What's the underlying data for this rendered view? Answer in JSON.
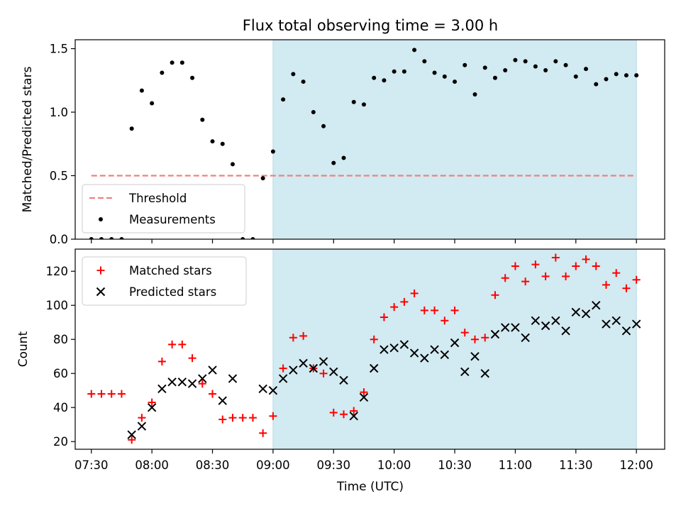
{
  "chart_data": [
    {
      "type": "scatter",
      "title": "Flux total observing time = 3.00 h",
      "ylabel": "Matched/Predicted stars",
      "xlabel": "",
      "ylim": [
        0,
        1.57
      ],
      "xlim": [
        "07:22",
        "12:14"
      ],
      "y_ticks": [
        "0.0",
        "0.5",
        "1.0",
        "1.5"
      ],
      "y_tick_values": [
        0,
        0.5,
        1.0,
        1.5
      ],
      "grid": false,
      "legend_position": "lower-left",
      "shaded_interval": {
        "start": "09:00",
        "end": "12:00",
        "color": "#add8e6"
      },
      "threshold": {
        "name": "Threshold",
        "value": 0.5,
        "from": "07:30",
        "to": "12:00",
        "color": "#f08080",
        "style": "dashed"
      },
      "series": [
        {
          "name": "Measurements",
          "marker": "dot",
          "color": "#000000",
          "points": [
            [
              "07:30",
              0.0
            ],
            [
              "07:35",
              0.0
            ],
            [
              "07:40",
              0.0
            ],
            [
              "07:45",
              0.0
            ],
            [
              "07:50",
              0.87
            ],
            [
              "07:55",
              1.17
            ],
            [
              "08:00",
              1.07
            ],
            [
              "08:05",
              1.31
            ],
            [
              "08:10",
              1.39
            ],
            [
              "08:15",
              1.39
            ],
            [
              "08:20",
              1.27
            ],
            [
              "08:25",
              0.94
            ],
            [
              "08:30",
              0.77
            ],
            [
              "08:35",
              0.75
            ],
            [
              "08:40",
              0.59
            ],
            [
              "08:45",
              0.0
            ],
            [
              "08:50",
              0.0
            ],
            [
              "08:55",
              0.48
            ],
            [
              "09:00",
              0.69
            ],
            [
              "09:05",
              1.1
            ],
            [
              "09:10",
              1.3
            ],
            [
              "09:15",
              1.24
            ],
            [
              "09:20",
              1.0
            ],
            [
              "09:25",
              0.89
            ],
            [
              "09:30",
              0.6
            ],
            [
              "09:35",
              0.64
            ],
            [
              "09:40",
              1.08
            ],
            [
              "09:45",
              1.06
            ],
            [
              "09:50",
              1.27
            ],
            [
              "09:55",
              1.25
            ],
            [
              "10:00",
              1.32
            ],
            [
              "10:05",
              1.32
            ],
            [
              "10:10",
              1.49
            ],
            [
              "10:15",
              1.4
            ],
            [
              "10:20",
              1.31
            ],
            [
              "10:25",
              1.28
            ],
            [
              "10:30",
              1.24
            ],
            [
              "10:35",
              1.37
            ],
            [
              "10:40",
              1.14
            ],
            [
              "10:45",
              1.35
            ],
            [
              "10:50",
              1.27
            ],
            [
              "10:55",
              1.33
            ],
            [
              "11:00",
              1.41
            ],
            [
              "11:05",
              1.4
            ],
            [
              "11:10",
              1.36
            ],
            [
              "11:15",
              1.33
            ],
            [
              "11:20",
              1.4
            ],
            [
              "11:25",
              1.37
            ],
            [
              "11:30",
              1.28
            ],
            [
              "11:35",
              1.34
            ],
            [
              "11:40",
              1.22
            ],
            [
              "11:45",
              1.26
            ],
            [
              "11:50",
              1.3
            ],
            [
              "11:55",
              1.29
            ],
            [
              "12:00",
              1.29
            ]
          ]
        }
      ]
    },
    {
      "type": "scatter",
      "title": "",
      "ylabel": "Count",
      "xlabel": "Time (UTC)",
      "ylim": [
        15.5,
        133
      ],
      "xlim": [
        "07:22",
        "12:14"
      ],
      "x_ticks": [
        "07:30",
        "08:00",
        "08:30",
        "09:00",
        "09:30",
        "10:00",
        "10:30",
        "11:00",
        "11:30",
        "12:00"
      ],
      "y_ticks": [
        "20",
        "40",
        "60",
        "80",
        "100",
        "120"
      ],
      "y_tick_values": [
        20,
        40,
        60,
        80,
        100,
        120
      ],
      "grid": false,
      "legend_position": "top-left",
      "shaded_interval": {
        "start": "09:00",
        "end": "12:00",
        "color": "#add8e6"
      },
      "series": [
        {
          "name": "Matched stars",
          "marker": "plus",
          "color": "#ff0000",
          "points": [
            [
              "07:30",
              48
            ],
            [
              "07:35",
              48
            ],
            [
              "07:40",
              48
            ],
            [
              "07:45",
              48
            ],
            [
              "07:50",
              21
            ],
            [
              "07:55",
              34
            ],
            [
              "08:00",
              43
            ],
            [
              "08:05",
              67
            ],
            [
              "08:10",
              77
            ],
            [
              "08:15",
              77
            ],
            [
              "08:20",
              69
            ],
            [
              "08:25",
              54
            ],
            [
              "08:30",
              48
            ],
            [
              "08:35",
              33
            ],
            [
              "08:40",
              34
            ],
            [
              "08:45",
              34
            ],
            [
              "08:50",
              34
            ],
            [
              "08:55",
              25
            ],
            [
              "09:00",
              35
            ],
            [
              "09:05",
              63
            ],
            [
              "09:10",
              81
            ],
            [
              "09:15",
              82
            ],
            [
              "09:20",
              63
            ],
            [
              "09:25",
              60
            ],
            [
              "09:30",
              37
            ],
            [
              "09:35",
              36
            ],
            [
              "09:40",
              38
            ],
            [
              "09:45",
              49
            ],
            [
              "09:50",
              80
            ],
            [
              "09:55",
              93
            ],
            [
              "10:00",
              99
            ],
            [
              "10:05",
              102
            ],
            [
              "10:10",
              107
            ],
            [
              "10:15",
              97
            ],
            [
              "10:20",
              97
            ],
            [
              "10:25",
              91
            ],
            [
              "10:30",
              97
            ],
            [
              "10:35",
              84
            ],
            [
              "10:40",
              80
            ],
            [
              "10:45",
              81
            ],
            [
              "10:50",
              106
            ],
            [
              "10:55",
              116
            ],
            [
              "11:00",
              123
            ],
            [
              "11:05",
              114
            ],
            [
              "11:10",
              124
            ],
            [
              "11:15",
              117
            ],
            [
              "11:20",
              128
            ],
            [
              "11:25",
              117
            ],
            [
              "11:30",
              123
            ],
            [
              "11:35",
              127
            ],
            [
              "11:40",
              123
            ],
            [
              "11:45",
              112
            ],
            [
              "11:50",
              119
            ],
            [
              "11:55",
              110
            ],
            [
              "12:00",
              115
            ]
          ]
        },
        {
          "name": "Predicted stars",
          "marker": "x",
          "color": "#000000",
          "points": [
            [
              "07:50",
              24
            ],
            [
              "07:55",
              29
            ],
            [
              "08:00",
              40
            ],
            [
              "08:05",
              51
            ],
            [
              "08:10",
              55
            ],
            [
              "08:15",
              55
            ],
            [
              "08:20",
              54
            ],
            [
              "08:25",
              57
            ],
            [
              "08:30",
              62
            ],
            [
              "08:35",
              44
            ],
            [
              "08:40",
              57
            ],
            [
              "08:55",
              51
            ],
            [
              "09:00",
              50
            ],
            [
              "09:05",
              57
            ],
            [
              "09:10",
              62
            ],
            [
              "09:15",
              66
            ],
            [
              "09:20",
              63
            ],
            [
              "09:25",
              67
            ],
            [
              "09:30",
              61
            ],
            [
              "09:35",
              56
            ],
            [
              "09:40",
              35
            ],
            [
              "09:45",
              46
            ],
            [
              "09:50",
              63
            ],
            [
              "09:55",
              74
            ],
            [
              "10:00",
              75
            ],
            [
              "10:05",
              77
            ],
            [
              "10:10",
              72
            ],
            [
              "10:15",
              69
            ],
            [
              "10:20",
              74
            ],
            [
              "10:25",
              71
            ],
            [
              "10:30",
              78
            ],
            [
              "10:35",
              61
            ],
            [
              "10:40",
              70
            ],
            [
              "10:45",
              60
            ],
            [
              "10:50",
              83
            ],
            [
              "10:55",
              87
            ],
            [
              "11:00",
              87
            ],
            [
              "11:05",
              81
            ],
            [
              "11:10",
              91
            ],
            [
              "11:15",
              88
            ],
            [
              "11:20",
              91
            ],
            [
              "11:25",
              85
            ],
            [
              "11:30",
              96
            ],
            [
              "11:35",
              95
            ],
            [
              "11:40",
              100
            ],
            [
              "11:45",
              89
            ],
            [
              "11:50",
              91
            ],
            [
              "11:55",
              85
            ],
            [
              "12:00",
              89
            ]
          ]
        }
      ]
    }
  ]
}
